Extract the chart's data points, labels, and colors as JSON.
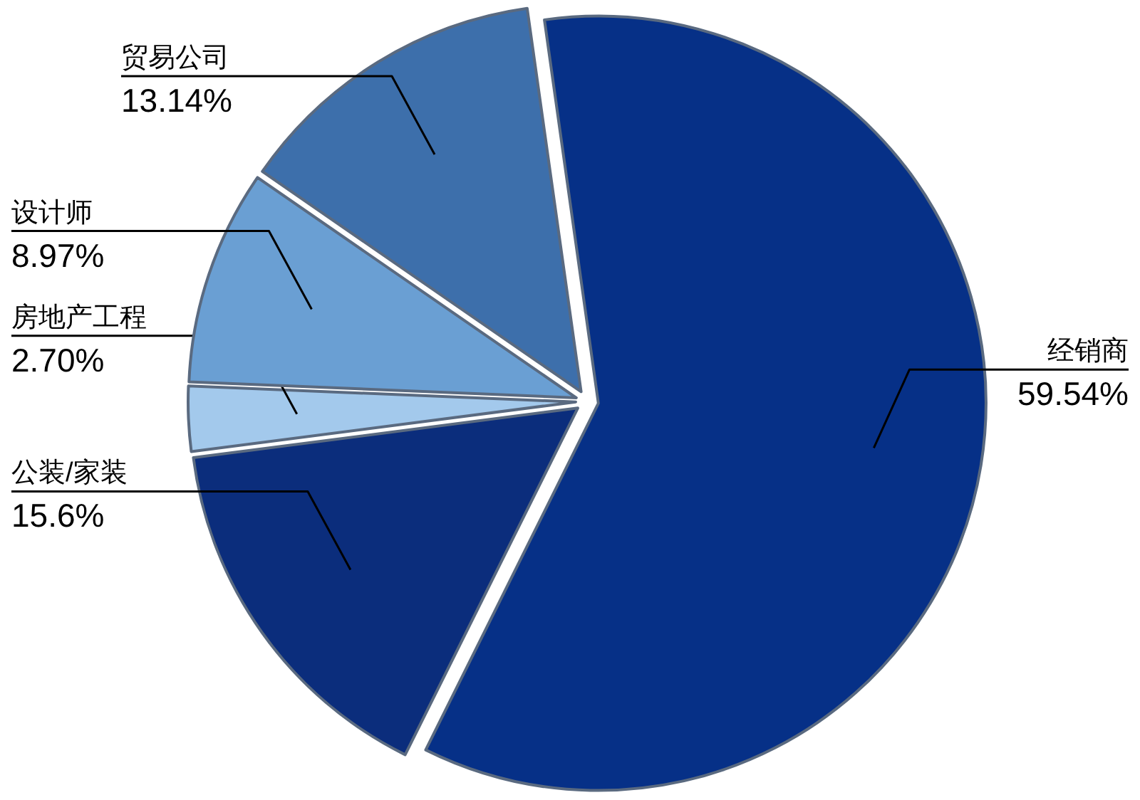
{
  "chart_data": {
    "type": "pie",
    "categories": [
      "经销商",
      "公装/家装",
      "房地产工程",
      "设计师",
      "贸易公司"
    ],
    "values": [
      59.54,
      15.6,
      2.7,
      8.97,
      13.14
    ],
    "value_labels": [
      "59.54%",
      "15.6%",
      "2.70%",
      "8.97%",
      "13.14%"
    ],
    "colors": [
      "#063087",
      "#0b2d7c",
      "#a3c9ec",
      "#6a9fd3",
      "#3d6fab"
    ],
    "legend": false
  }
}
